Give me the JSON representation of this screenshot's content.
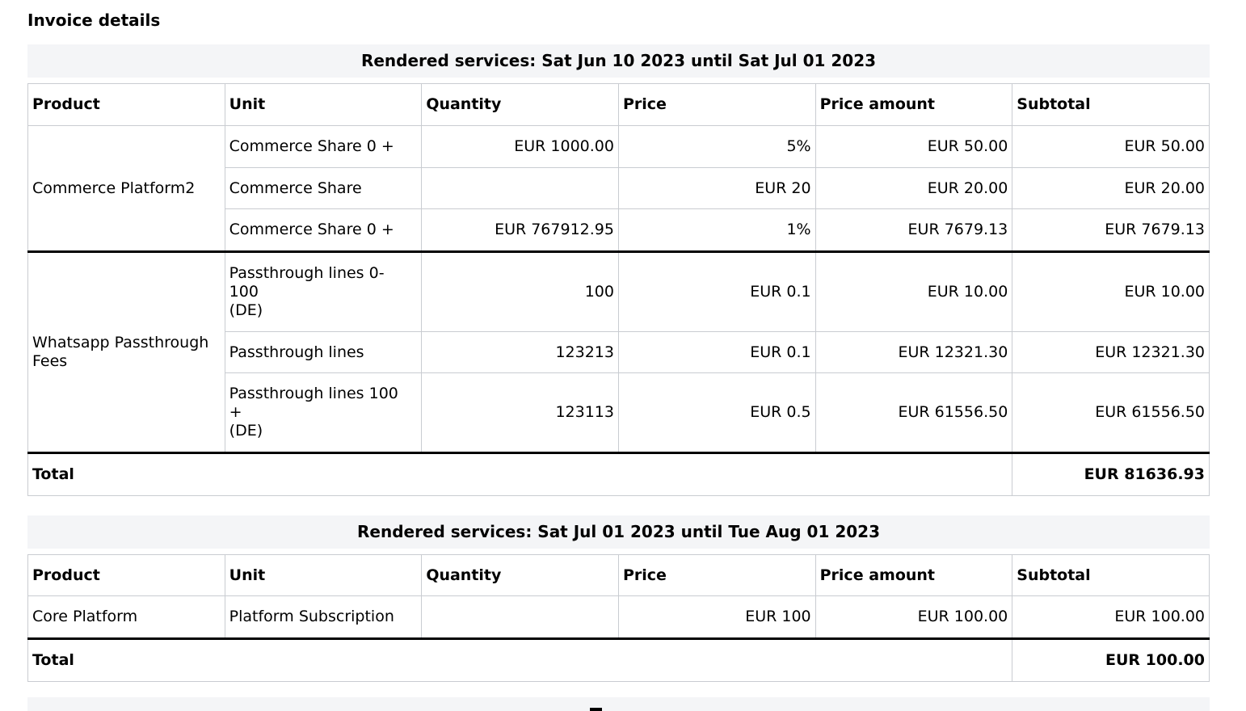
{
  "page": {
    "title": "Invoice details"
  },
  "colors": {
    "text": "#000000",
    "table_border": "#c9ccd1",
    "caption_background": "#f4f5f7",
    "group_separator": "#000000"
  },
  "tables": [
    {
      "caption": "Rendered services: Sat Jun 10 2023 until Sat Jul 01 2023",
      "columns": [
        "Product",
        "Unit",
        "Quantity",
        "Price",
        "Price amount",
        "Subtotal"
      ],
      "groups": [
        {
          "product": "Commerce Platform2",
          "rows": [
            {
              "unit": "Commerce Share 0 +",
              "region": "",
              "quantity": "EUR 1000.00",
              "price": "5%",
              "price_amount": "EUR 50.00",
              "subtotal": "EUR 50.00"
            },
            {
              "unit": "Commerce Share",
              "region": "",
              "quantity": "",
              "price": "EUR 20",
              "price_amount": "EUR 20.00",
              "subtotal": "EUR 20.00"
            },
            {
              "unit": "Commerce Share 0 +",
              "region": "",
              "quantity": "EUR 767912.95",
              "price": "1%",
              "price_amount": "EUR 7679.13",
              "subtotal": "EUR 7679.13"
            }
          ]
        },
        {
          "product": "Whatsapp Passthrough Fees",
          "rows": [
            {
              "unit": "Passthrough lines 0-100",
              "region": "(DE)",
              "quantity": "100",
              "price": "EUR 0.1",
              "price_amount": "EUR 10.00",
              "subtotal": "EUR 10.00"
            },
            {
              "unit": "Passthrough lines",
              "region": "",
              "quantity": "123213",
              "price": "EUR 0.1",
              "price_amount": "EUR 12321.30",
              "subtotal": "EUR 12321.30"
            },
            {
              "unit": "Passthrough lines 100 +",
              "region": "(DE)",
              "quantity": "123113",
              "price": "EUR 0.5",
              "price_amount": "EUR 61556.50",
              "subtotal": "EUR 61556.50"
            }
          ]
        }
      ],
      "total_label": "Total",
      "total_value": "EUR 81636.93"
    },
    {
      "caption": "Rendered services: Sat Jul 01 2023 until Tue Aug 01 2023",
      "columns": [
        "Product",
        "Unit",
        "Quantity",
        "Price",
        "Price amount",
        "Subtotal"
      ],
      "groups": [
        {
          "product": "Core Platform",
          "rows": [
            {
              "unit": "Platform Subscription",
              "region": "",
              "quantity": "",
              "price": "EUR 100",
              "price_amount": "EUR 100.00",
              "subtotal": "EUR 100.00"
            }
          ]
        }
      ],
      "total_label": "Total",
      "total_value": "EUR 100.00"
    }
  ],
  "cutoff_section": {
    "visible": true
  }
}
